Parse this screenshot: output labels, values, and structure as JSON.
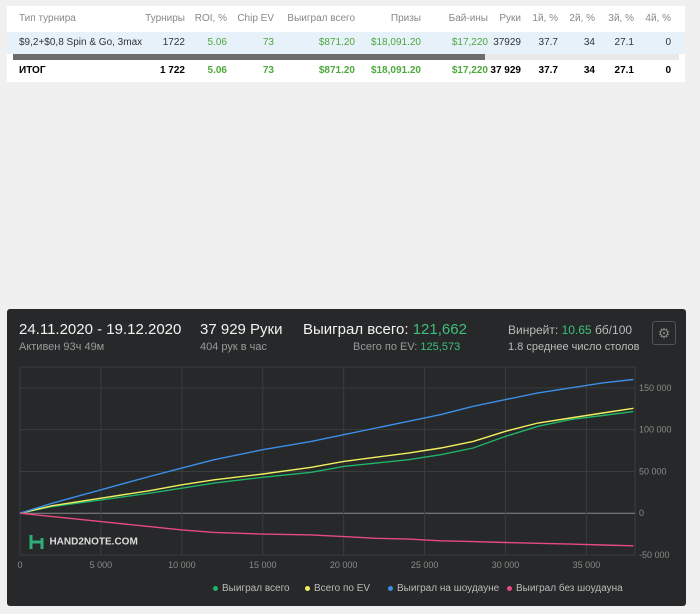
{
  "table": {
    "headers": [
      "Тип турнира",
      "Турниры",
      "ROI, %",
      "Chip EV",
      "Выиграл всего",
      "Призы",
      "Бай-ины",
      "Руки",
      "1й, %",
      "2й, %",
      "3й, %",
      "4й, %"
    ],
    "row": [
      "$9,2+$0,8 Spin & Go, 3max",
      "1722",
      "5.06",
      "73",
      "$871.20",
      "$18,091.20",
      "$17,220",
      "37929",
      "37.7",
      "34",
      "27.1",
      "0"
    ],
    "total": [
      "ИТОГ",
      "1 722",
      "5.06",
      "73",
      "$871.20",
      "$18,091.20",
      "$17,220",
      "37 929",
      "37.7",
      "34",
      "27.1",
      "0"
    ]
  },
  "dashboard": {
    "date_range": "24.11.2020 - 19.12.2020",
    "active": "Активен 93ч 49м",
    "hands": "37 929 Руки",
    "hands_per_hour": "404 рук в час",
    "won_label": "Выиграл всего:",
    "won_value": "121,662",
    "ev_label": "Всего по EV:",
    "ev_value": "125,573",
    "winrate_label": "Винрейт:",
    "winrate_value": "10.65",
    "winrate_unit": "бб/100",
    "tables_info": "1.8 среднее число столов",
    "logo": "HAND2NOTE.COM",
    "gear_icon": "gear-icon"
  },
  "chart_data": {
    "type": "line",
    "x_ticks": [
      "0",
      "5 000",
      "10 000",
      "15 000",
      "20 000",
      "25 000",
      "30 000",
      "35 000"
    ],
    "y_ticks": [
      "-50 000",
      "0",
      "50 000",
      "100 000",
      "150 000"
    ],
    "xlim": [
      0,
      38000
    ],
    "ylim": [
      -50000,
      175000
    ],
    "grid": true,
    "legend_position": "bottom",
    "series": [
      {
        "name": "Выиграл всего",
        "color": "#21b36b",
        "x": [
          0,
          2000,
          5000,
          8000,
          10000,
          12000,
          15000,
          18000,
          20000,
          22000,
          24000,
          26000,
          28000,
          30000,
          32000,
          34000,
          36000,
          37900
        ],
        "y": [
          0,
          8000,
          16000,
          24000,
          30000,
          36000,
          43000,
          49000,
          56000,
          60000,
          64000,
          70000,
          78000,
          92000,
          104000,
          112000,
          117000,
          121662
        ]
      },
      {
        "name": "Всего по EV",
        "color": "#f0f060",
        "x": [
          0,
          2000,
          5000,
          8000,
          10000,
          12000,
          15000,
          18000,
          20000,
          22000,
          24000,
          26000,
          28000,
          30000,
          32000,
          34000,
          36000,
          37900
        ],
        "y": [
          0,
          9000,
          18000,
          27000,
          34000,
          40000,
          47000,
          55000,
          62000,
          67000,
          72000,
          78000,
          86000,
          98000,
          108000,
          114000,
          120000,
          125573
        ]
      },
      {
        "name": "Выиграл на шоудауне",
        "color": "#3b8fe8",
        "x": [
          0,
          2000,
          5000,
          8000,
          10000,
          12000,
          15000,
          18000,
          20000,
          22000,
          24000,
          26000,
          28000,
          30000,
          32000,
          34000,
          36000,
          37900
        ],
        "y": [
          0,
          12000,
          28000,
          44000,
          54000,
          64000,
          76000,
          86000,
          94000,
          102000,
          110000,
          118000,
          128000,
          136000,
          144000,
          150000,
          156000,
          160000
        ]
      },
      {
        "name": "Выиграл без шоудауна",
        "color": "#e84a80",
        "x": [
          0,
          2000,
          5000,
          8000,
          10000,
          12000,
          15000,
          18000,
          20000,
          22000,
          24000,
          26000,
          28000,
          30000,
          32000,
          34000,
          36000,
          37900
        ],
        "y": [
          0,
          -4000,
          -10000,
          -16000,
          -20000,
          -23000,
          -25000,
          -26000,
          -28000,
          -30000,
          -31000,
          -33000,
          -34000,
          -35000,
          -36000,
          -37000,
          -38000,
          -39000
        ]
      }
    ]
  }
}
